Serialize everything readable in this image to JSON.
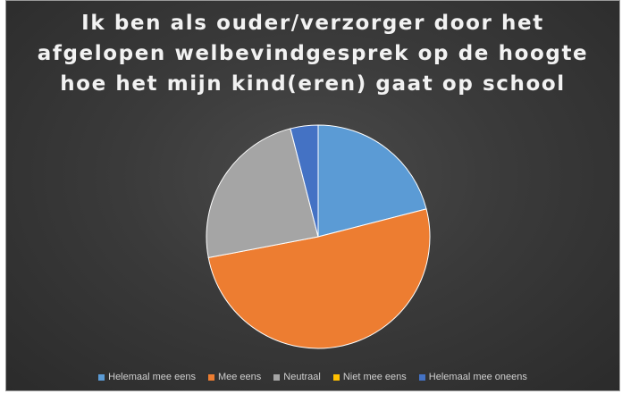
{
  "chart_data": {
    "type": "pie",
    "title_lines": [
      "Ik ben als ouder/verzorger door het",
      "afgelopen welbevindgesprek op de hoogte",
      "hoe het mijn kind(eren) gaat op school"
    ],
    "categories": [
      "Helemaal mee eens",
      "Mee eens",
      "Neutraal",
      "Niet mee eens",
      "Helemaal mee oneens"
    ],
    "values": [
      21,
      51,
      24,
      0,
      4
    ],
    "colors": [
      "#5b9bd5",
      "#ed7d31",
      "#a5a5a5",
      "#ffc000",
      "#4472c4"
    ],
    "start_angle": "12 o'clock, clockwise",
    "legend_position": "bottom",
    "background": "#3a3a3a"
  }
}
